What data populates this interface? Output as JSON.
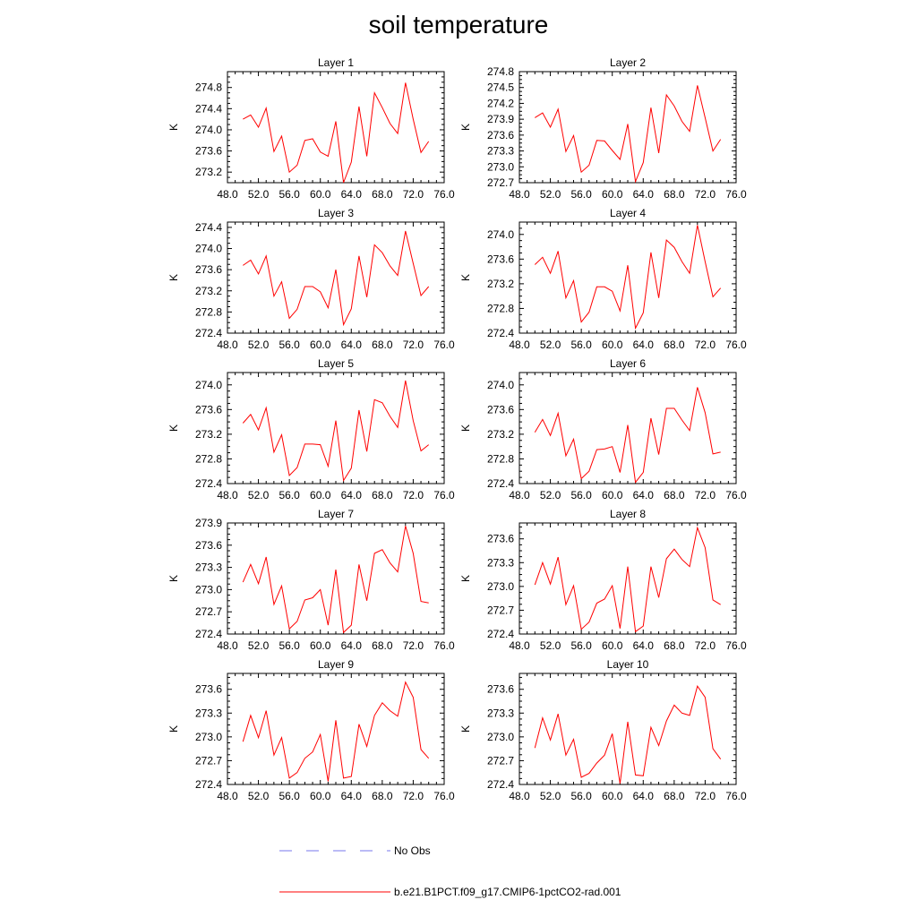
{
  "title": "soil temperature",
  "legend": [
    {
      "label": "No Obs",
      "color": "#7777ee",
      "dash": true
    },
    {
      "label": "b.e21.B1PCT.f09_g17.CMIP6-1pctCO2-rad.001",
      "color": "#ff0000",
      "dash": false
    }
  ],
  "chart_data": [
    {
      "type": "line",
      "title": "Layer 1",
      "ylabel": "K",
      "xlim": [
        48.0,
        76.0
      ],
      "xticks": [
        "48.0",
        "52.0",
        "56.0",
        "60.0",
        "64.0",
        "68.0",
        "72.0",
        "76.0"
      ],
      "ylim": [
        273.0,
        275.1
      ],
      "yticks": [
        "273.2",
        "273.6",
        "274.0",
        "274.4",
        "274.8"
      ],
      "x": [
        50,
        51,
        52,
        53,
        54,
        55,
        56,
        57,
        58,
        59,
        60,
        61,
        62,
        63,
        64,
        65,
        66,
        67,
        68,
        69,
        70,
        71,
        72,
        73,
        74
      ],
      "series": [
        {
          "color": "#ff0000",
          "values": [
            274.2,
            274.28,
            274.05,
            274.41,
            273.59,
            273.88,
            273.2,
            273.33,
            273.8,
            273.83,
            273.58,
            273.5,
            274.16,
            273.0,
            273.39,
            274.44,
            273.5,
            274.7,
            274.42,
            274.12,
            273.93,
            274.89,
            274.2,
            273.57,
            273.78
          ]
        }
      ]
    },
    {
      "type": "line",
      "title": "Layer 2",
      "ylabel": "K",
      "xlim": [
        48.0,
        76.0
      ],
      "xticks": [
        "48.0",
        "52.0",
        "56.0",
        "60.0",
        "64.0",
        "68.0",
        "72.0",
        "76.0"
      ],
      "ylim": [
        272.7,
        274.8
      ],
      "yticks": [
        "272.7",
        "273.0",
        "273.3",
        "273.6",
        "273.9",
        "274.2",
        "274.5",
        "274.8"
      ],
      "x": [
        50,
        51,
        52,
        53,
        54,
        55,
        56,
        57,
        58,
        59,
        60,
        61,
        62,
        63,
        64,
        65,
        66,
        67,
        68,
        69,
        70,
        71,
        72,
        73,
        74
      ],
      "series": [
        {
          "color": "#ff0000",
          "values": [
            273.93,
            274.02,
            273.75,
            274.09,
            273.29,
            273.59,
            272.9,
            273.03,
            273.5,
            273.49,
            273.31,
            273.14,
            273.81,
            272.72,
            273.08,
            274.12,
            273.26,
            274.36,
            274.15,
            273.86,
            273.67,
            274.54,
            273.93,
            273.3,
            273.52
          ]
        }
      ]
    },
    {
      "type": "line",
      "title": "Layer 3",
      "ylabel": "K",
      "xlim": [
        48.0,
        76.0
      ],
      "xticks": [
        "48.0",
        "52.0",
        "56.0",
        "60.0",
        "64.0",
        "68.0",
        "72.0",
        "76.0"
      ],
      "ylim": [
        272.4,
        274.5
      ],
      "yticks": [
        "272.4",
        "272.8",
        "273.2",
        "273.6",
        "274.0",
        "274.4"
      ],
      "x": [
        50,
        51,
        52,
        53,
        54,
        55,
        56,
        57,
        58,
        59,
        60,
        61,
        62,
        63,
        64,
        65,
        66,
        67,
        68,
        69,
        70,
        71,
        72,
        73,
        74
      ],
      "series": [
        {
          "color": "#ff0000",
          "values": [
            273.68,
            273.78,
            273.52,
            273.86,
            273.1,
            273.37,
            272.68,
            272.85,
            273.28,
            273.28,
            273.18,
            272.88,
            273.6,
            272.56,
            272.86,
            273.86,
            273.08,
            274.07,
            273.92,
            273.67,
            273.49,
            274.33,
            273.72,
            273.11,
            273.28
          ]
        }
      ]
    },
    {
      "type": "line",
      "title": "Layer 4",
      "ylabel": "K",
      "xlim": [
        48.0,
        76.0
      ],
      "xticks": [
        "48.0",
        "52.0",
        "56.0",
        "60.0",
        "64.0",
        "68.0",
        "72.0",
        "76.0"
      ],
      "ylim": [
        272.4,
        274.2
      ],
      "yticks": [
        "272.4",
        "272.8",
        "273.2",
        "273.6",
        "274.0"
      ],
      "x": [
        50,
        51,
        52,
        53,
        54,
        55,
        56,
        57,
        58,
        59,
        60,
        61,
        62,
        63,
        64,
        65,
        66,
        67,
        68,
        69,
        70,
        71,
        72,
        73,
        74
      ],
      "series": [
        {
          "color": "#ff0000",
          "values": [
            273.51,
            273.63,
            273.37,
            273.73,
            272.97,
            273.25,
            272.58,
            272.74,
            273.15,
            273.15,
            273.08,
            272.76,
            273.5,
            272.48,
            272.73,
            273.71,
            272.97,
            273.91,
            273.79,
            273.56,
            273.37,
            274.15,
            273.56,
            272.99,
            273.13
          ]
        }
      ]
    },
    {
      "type": "line",
      "title": "Layer 5",
      "ylabel": "K",
      "xlim": [
        48.0,
        76.0
      ],
      "xticks": [
        "48.0",
        "52.0",
        "56.0",
        "60.0",
        "64.0",
        "68.0",
        "72.0",
        "76.0"
      ],
      "ylim": [
        272.4,
        274.2
      ],
      "yticks": [
        "272.4",
        "272.8",
        "273.2",
        "273.6",
        "274.0"
      ],
      "x": [
        50,
        51,
        52,
        53,
        54,
        55,
        56,
        57,
        58,
        59,
        60,
        61,
        62,
        63,
        64,
        65,
        66,
        67,
        68,
        69,
        70,
        71,
        72,
        73,
        74
      ],
      "series": [
        {
          "color": "#ff0000",
          "values": [
            273.38,
            273.52,
            273.27,
            273.63,
            272.91,
            273.19,
            272.53,
            272.66,
            273.04,
            273.04,
            273.03,
            272.68,
            273.42,
            272.45,
            272.65,
            273.59,
            272.92,
            273.76,
            273.71,
            273.49,
            273.31,
            274.07,
            273.42,
            272.93,
            273.03
          ]
        }
      ]
    },
    {
      "type": "line",
      "title": "Layer 6",
      "ylabel": "K",
      "xlim": [
        48.0,
        76.0
      ],
      "xticks": [
        "48.0",
        "52.0",
        "56.0",
        "60.0",
        "64.0",
        "68.0",
        "72.0",
        "76.0"
      ],
      "ylim": [
        272.4,
        274.2
      ],
      "yticks": [
        "272.4",
        "272.8",
        "273.2",
        "273.6",
        "274.0"
      ],
      "x": [
        50,
        51,
        52,
        53,
        54,
        55,
        56,
        57,
        58,
        59,
        60,
        61,
        62,
        63,
        64,
        65,
        66,
        67,
        68,
        69,
        70,
        71,
        72,
        73,
        74
      ],
      "series": [
        {
          "color": "#ff0000",
          "values": [
            273.23,
            273.44,
            273.18,
            273.54,
            272.85,
            273.12,
            272.48,
            272.6,
            272.95,
            272.96,
            273.0,
            272.58,
            273.35,
            272.42,
            272.58,
            273.46,
            272.87,
            273.62,
            273.62,
            273.43,
            273.26,
            273.96,
            273.55,
            272.88,
            272.91
          ]
        }
      ]
    },
    {
      "type": "line",
      "title": "Layer 7",
      "ylabel": "K",
      "xlim": [
        48.0,
        76.0
      ],
      "xticks": [
        "48.0",
        "52.0",
        "56.0",
        "60.0",
        "64.0",
        "68.0",
        "72.0",
        "76.0"
      ],
      "ylim": [
        272.4,
        273.9
      ],
      "yticks": [
        "272.4",
        "272.7",
        "273.0",
        "273.3",
        "273.6",
        "273.9"
      ],
      "x": [
        50,
        51,
        52,
        53,
        54,
        55,
        56,
        57,
        58,
        59,
        60,
        61,
        62,
        63,
        64,
        65,
        66,
        67,
        68,
        69,
        70,
        71,
        72,
        73,
        74
      ],
      "series": [
        {
          "color": "#ff0000",
          "values": [
            273.1,
            273.34,
            273.08,
            273.44,
            272.8,
            273.05,
            272.47,
            272.57,
            272.86,
            272.89,
            273.0,
            272.52,
            273.27,
            272.42,
            272.52,
            273.34,
            272.85,
            273.49,
            273.54,
            273.36,
            273.24,
            273.86,
            273.49,
            272.84,
            272.82
          ]
        }
      ]
    },
    {
      "type": "line",
      "title": "Layer 8",
      "ylabel": "K",
      "xlim": [
        48.0,
        76.0
      ],
      "xticks": [
        "48.0",
        "52.0",
        "56.0",
        "60.0",
        "64.0",
        "68.0",
        "72.0",
        "76.0"
      ],
      "ylim": [
        272.4,
        273.8
      ],
      "yticks": [
        "272.4",
        "272.7",
        "273.0",
        "273.3",
        "273.6"
      ],
      "x": [
        50,
        51,
        52,
        53,
        54,
        55,
        56,
        57,
        58,
        59,
        60,
        61,
        62,
        63,
        64,
        65,
        66,
        67,
        68,
        69,
        70,
        71,
        72,
        73,
        74
      ],
      "series": [
        {
          "color": "#ff0000",
          "values": [
            273.02,
            273.3,
            273.03,
            273.37,
            272.77,
            273.01,
            272.46,
            272.55,
            272.79,
            272.84,
            273.01,
            272.47,
            273.25,
            272.43,
            272.5,
            273.25,
            272.86,
            273.35,
            273.47,
            273.34,
            273.25,
            273.74,
            273.49,
            272.83,
            272.77
          ]
        }
      ]
    },
    {
      "type": "line",
      "title": "Layer 9",
      "ylabel": "K",
      "xlim": [
        48.0,
        76.0
      ],
      "xticks": [
        "48.0",
        "52.0",
        "56.0",
        "60.0",
        "64.0",
        "68.0",
        "72.0",
        "76.0"
      ],
      "ylim": [
        272.4,
        273.8
      ],
      "yticks": [
        "272.4",
        "272.7",
        "273.0",
        "273.3",
        "273.6"
      ],
      "x": [
        50,
        51,
        52,
        53,
        54,
        55,
        56,
        57,
        58,
        59,
        60,
        61,
        62,
        63,
        64,
        65,
        66,
        67,
        68,
        69,
        70,
        71,
        72,
        73,
        74
      ],
      "series": [
        {
          "color": "#ff0000",
          "values": [
            272.94,
            273.27,
            272.99,
            273.33,
            272.77,
            272.99,
            272.48,
            272.55,
            272.73,
            272.81,
            273.03,
            272.44,
            273.21,
            272.48,
            272.5,
            273.16,
            272.88,
            273.27,
            273.43,
            273.33,
            273.26,
            273.69,
            273.5,
            272.84,
            272.73
          ]
        }
      ]
    },
    {
      "type": "line",
      "title": "Layer 10",
      "ylabel": "K",
      "xlim": [
        48.0,
        76.0
      ],
      "xticks": [
        "48.0",
        "52.0",
        "56.0",
        "60.0",
        "64.0",
        "68.0",
        "72.0",
        "76.0"
      ],
      "ylim": [
        272.4,
        273.8
      ],
      "yticks": [
        "272.4",
        "272.7",
        "273.0",
        "273.3",
        "273.6"
      ],
      "x": [
        50,
        51,
        52,
        53,
        54,
        55,
        56,
        57,
        58,
        59,
        60,
        61,
        62,
        63,
        64,
        65,
        66,
        67,
        68,
        69,
        70,
        71,
        72,
        73,
        74
      ],
      "series": [
        {
          "color": "#ff0000",
          "values": [
            272.86,
            273.24,
            272.96,
            273.29,
            272.77,
            272.97,
            272.49,
            272.54,
            272.67,
            272.77,
            273.04,
            272.41,
            273.19,
            272.52,
            272.51,
            273.12,
            272.89,
            273.2,
            273.4,
            273.3,
            273.27,
            273.64,
            273.5,
            272.85,
            272.72
          ]
        }
      ]
    }
  ]
}
